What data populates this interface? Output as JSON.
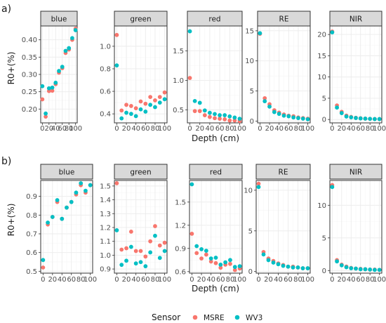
{
  "chart_data": [
    {
      "type": "scatter",
      "panel_tag": "a)",
      "ylabel": "R0+(%)",
      "xlabel": "Depth (cm)",
      "x_ticks": [
        0,
        20,
        40,
        60,
        80,
        100
      ],
      "x_tick_labels": [
        "0",
        "20",
        "40",
        "60",
        "80",
        "100"
      ],
      "xlim": [
        -5,
        105
      ],
      "facets": [
        {
          "label": "blue",
          "ylim": [
            0.16,
            0.44
          ],
          "y_ticks": [
            0.2,
            0.25,
            0.3,
            0.35,
            0.4
          ],
          "y_tick_labels": [
            "0.20",
            "0.25",
            "0.30",
            "0.35",
            "0.40"
          ],
          "series": [
            {
              "name": "MSRE",
              "x": [
                0,
                10,
                20,
                30,
                40,
                50,
                60,
                70,
                80,
                90,
                100
              ],
              "y": [
                0.228,
                0.178,
                0.252,
                0.253,
                0.272,
                0.305,
                0.318,
                0.362,
                0.372,
                0.4,
                0.432
              ]
            },
            {
              "name": "WV3",
              "x": [
                0,
                10,
                20,
                30,
                40,
                50,
                60,
                70,
                80,
                90,
                100
              ],
              "y": [
                0.266,
                0.187,
                0.26,
                0.262,
                0.276,
                0.31,
                0.322,
                0.368,
                0.376,
                0.405,
                0.428
              ]
            }
          ]
        },
        {
          "label": "green",
          "ylim": [
            0.32,
            1.18
          ],
          "y_ticks": [
            0.4,
            0.6,
            0.8,
            1.0
          ],
          "y_tick_labels": [
            "0.4",
            "0.6",
            "0.8",
            "1.0"
          ],
          "series": [
            {
              "name": "MSRE",
              "x": [
                0,
                10,
                20,
                30,
                40,
                50,
                60,
                70,
                80,
                90,
                100
              ],
              "y": [
                1.1,
                0.43,
                0.48,
                0.47,
                0.45,
                0.51,
                0.49,
                0.55,
                0.52,
                0.55,
                0.59
              ]
            },
            {
              "name": "WV3",
              "x": [
                0,
                10,
                20,
                30,
                40,
                50,
                60,
                70,
                80,
                90,
                100
              ],
              "y": [
                0.83,
                0.36,
                0.41,
                0.4,
                0.38,
                0.44,
                0.42,
                0.48,
                0.46,
                0.5,
                0.53
              ]
            }
          ]
        },
        {
          "label": "red",
          "ylim": [
            0.28,
            1.92
          ],
          "y_ticks": [
            0.5,
            1.0,
            1.5
          ],
          "y_tick_labels": [
            "0.5",
            "1.0",
            "1.5"
          ],
          "series": [
            {
              "name": "MSRE",
              "x": [
                0,
                10,
                20,
                30,
                40,
                50,
                60,
                70,
                80,
                90,
                100
              ],
              "y": [
                1.04,
                0.48,
                0.48,
                0.41,
                0.38,
                0.36,
                0.35,
                0.34,
                0.32,
                0.32,
                0.31
              ]
            },
            {
              "name": "WV3",
              "x": [
                0,
                10,
                20,
                30,
                40,
                50,
                60,
                70,
                80,
                90,
                100
              ],
              "y": [
                1.83,
                0.65,
                0.62,
                0.49,
                0.45,
                0.43,
                0.41,
                0.41,
                0.39,
                0.37,
                0.35
              ]
            }
          ]
        },
        {
          "label": "RE",
          "ylim": [
            -0.3,
            15.8
          ],
          "y_ticks": [
            0,
            5,
            10,
            15
          ],
          "y_tick_labels": [
            "0",
            "5",
            "10",
            "15"
          ],
          "series": [
            {
              "name": "MSRE",
              "x": [
                0,
                10,
                20,
                30,
                40,
                50,
                60,
                70,
                80,
                90,
                100
              ],
              "y": [
                14.5,
                3.8,
                2.8,
                1.8,
                1.4,
                1.1,
                0.9,
                0.8,
                0.6,
                0.5,
                0.4
              ]
            },
            {
              "name": "WV3",
              "x": [
                0,
                10,
                20,
                30,
                40,
                50,
                60,
                70,
                80,
                90,
                100
              ],
              "y": [
                14.6,
                3.3,
                2.4,
                1.5,
                1.2,
                0.9,
                0.8,
                0.6,
                0.5,
                0.4,
                0.3
              ]
            }
          ]
        },
        {
          "label": "NIR",
          "ylim": [
            -0.8,
            22.0
          ],
          "y_ticks": [
            0,
            5,
            10,
            15,
            20
          ],
          "y_tick_labels": [
            "0",
            "5",
            "10",
            "15",
            "20"
          ],
          "series": [
            {
              "name": "MSRE",
              "x": [
                0,
                10,
                20,
                30,
                40,
                50,
                60,
                70,
                80,
                90,
                100
              ],
              "y": [
                20.7,
                3.3,
                1.8,
                0.9,
                0.6,
                0.4,
                0.3,
                0.2,
                0.15,
                0.1,
                0.1
              ]
            },
            {
              "name": "WV3",
              "x": [
                0,
                10,
                20,
                30,
                40,
                50,
                60,
                70,
                80,
                90,
                100
              ],
              "y": [
                20.5,
                2.8,
                1.5,
                0.7,
                0.5,
                0.35,
                0.25,
                0.2,
                0.15,
                0.1,
                0.1
              ]
            }
          ]
        }
      ]
    },
    {
      "type": "scatter",
      "panel_tag": "b)",
      "ylabel": "R0+(%)",
      "xlabel": "Depth (cm)",
      "x_ticks": [
        0,
        20,
        40,
        60,
        80,
        100
      ],
      "x_tick_labels": [
        "0",
        "20",
        "40",
        "60",
        "80",
        "100"
      ],
      "xlim": [
        -5,
        105
      ],
      "facets": [
        {
          "label": "blue",
          "ylim": [
            0.49,
            0.985
          ],
          "y_ticks": [
            0.5,
            0.6,
            0.7,
            0.8,
            0.9
          ],
          "y_tick_labels": [
            "0.5",
            "0.6",
            "0.7",
            "0.8",
            "0.9"
          ],
          "series": [
            {
              "name": "MSRE",
              "x": [
                0,
                10,
                20,
                30,
                40,
                50,
                60,
                70,
                80,
                90,
                100
              ],
              "y": [
                0.52,
                0.75,
                0.79,
                0.87,
                0.78,
                0.84,
                0.87,
                0.91,
                0.96,
                0.92,
                0.96
              ]
            },
            {
              "name": "WV3",
              "x": [
                0,
                10,
                20,
                30,
                40,
                50,
                60,
                70,
                80,
                90,
                100
              ],
              "y": [
                0.56,
                0.76,
                0.79,
                0.88,
                0.78,
                0.84,
                0.87,
                0.92,
                0.97,
                0.93,
                0.96
              ]
            }
          ]
        },
        {
          "label": "green",
          "ylim": [
            0.87,
            1.54
          ],
          "y_ticks": [
            0.9,
            1.0,
            1.1,
            1.2,
            1.3,
            1.4,
            1.5
          ],
          "y_tick_labels": [
            "0.9",
            "1.0",
            "1.1",
            "1.2",
            "1.3",
            "1.4",
            "1.5"
          ],
          "series": [
            {
              "name": "MSRE",
              "x": [
                0,
                10,
                20,
                30,
                40,
                50,
                60,
                70,
                80,
                90,
                100
              ],
              "y": [
                1.52,
                1.04,
                1.05,
                1.17,
                1.03,
                1.03,
                0.99,
                1.1,
                1.21,
                1.07,
                1.09
              ]
            },
            {
              "name": "WV3",
              "x": [
                0,
                10,
                20,
                30,
                40,
                50,
                60,
                70,
                80,
                90,
                100
              ],
              "y": [
                1.18,
                0.93,
                0.96,
                1.06,
                0.94,
                0.95,
                0.92,
                1.02,
                1.14,
                0.98,
                1.03
              ]
            }
          ]
        },
        {
          "label": "red",
          "ylim": [
            0.58,
            1.78
          ],
          "y_ticks": [
            0.6,
            0.9,
            1.2,
            1.5
          ],
          "y_tick_labels": [
            "0.6",
            "0.9",
            "1.2",
            "1.5"
          ],
          "series": [
            {
              "name": "MSRE",
              "x": [
                0,
                10,
                20,
                30,
                40,
                50,
                60,
                70,
                80,
                90,
                100
              ],
              "y": [
                1.09,
                0.84,
                0.77,
                0.82,
                0.73,
                0.71,
                0.65,
                0.69,
                0.7,
                0.62,
                0.64
              ]
            },
            {
              "name": "WV3",
              "x": [
                0,
                10,
                20,
                30,
                40,
                50,
                60,
                70,
                80,
                90,
                100
              ],
              "y": [
                1.73,
                0.93,
                0.89,
                0.87,
                0.77,
                0.78,
                0.69,
                0.72,
                0.75,
                0.66,
                0.67
              ]
            }
          ]
        },
        {
          "label": "RE",
          "ylim": [
            -0.2,
            11.2
          ],
          "y_ticks": [
            0,
            5,
            10
          ],
          "y_tick_labels": [
            "0",
            "5",
            "10"
          ],
          "series": [
            {
              "name": "MSRE",
              "x": [
                0,
                10,
                20,
                30,
                40,
                50,
                60,
                70,
                80,
                90,
                100
              ],
              "y": [
                10.8,
                2.4,
                1.6,
                1.3,
                1.0,
                0.8,
                0.6,
                0.6,
                0.5,
                0.4,
                0.4
              ]
            },
            {
              "name": "WV3",
              "x": [
                0,
                10,
                20,
                30,
                40,
                50,
                60,
                70,
                80,
                90,
                100
              ],
              "y": [
                10.4,
                2.1,
                1.4,
                1.1,
                0.9,
                0.7,
                0.6,
                0.5,
                0.5,
                0.4,
                0.4
              ]
            }
          ]
        },
        {
          "label": "NIR",
          "ylim": [
            -0.4,
            13.8
          ],
          "y_ticks": [
            0,
            5,
            10
          ],
          "y_tick_labels": [
            "0",
            "5",
            "10"
          ],
          "series": [
            {
              "name": "MSRE",
              "x": [
                0,
                10,
                20,
                30,
                40,
                50,
                60,
                70,
                80,
                90,
                100
              ],
              "y": [
                13.1,
                1.6,
                0.9,
                0.6,
                0.4,
                0.3,
                0.25,
                0.2,
                0.15,
                0.15,
                0.1
              ]
            },
            {
              "name": "WV3",
              "x": [
                0,
                10,
                20,
                30,
                40,
                50,
                60,
                70,
                80,
                90,
                100
              ],
              "y": [
                12.8,
                1.4,
                0.8,
                0.5,
                0.35,
                0.3,
                0.2,
                0.2,
                0.15,
                0.1,
                0.1
              ]
            }
          ]
        }
      ]
    }
  ],
  "legend": {
    "title": "Sensor",
    "placement": "bottom-center",
    "entries": [
      {
        "label": "MSRE",
        "color": "#F8766D"
      },
      {
        "label": "WV3",
        "color": "#00BFC4"
      }
    ]
  }
}
